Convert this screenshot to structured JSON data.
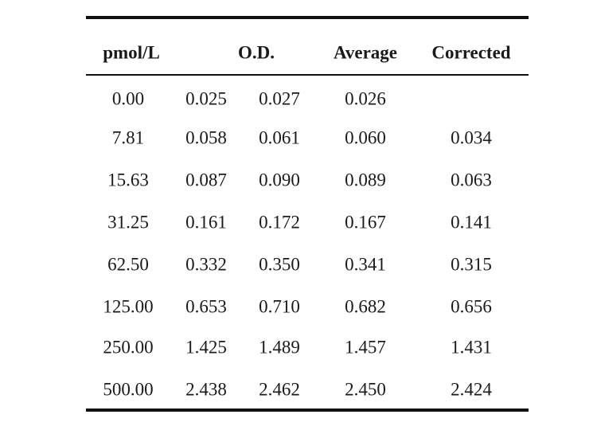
{
  "table": {
    "headers": {
      "concentration": "pmol/L",
      "od": "O.D.",
      "average": "Average",
      "corrected": "Corrected"
    },
    "rows": [
      {
        "conc": "0.00",
        "od1": "0.025",
        "od2": "0.027",
        "avg": "0.026",
        "corr": ""
      },
      {
        "conc": "7.81",
        "od1": "0.058",
        "od2": "0.061",
        "avg": "0.060",
        "corr": "0.034"
      },
      {
        "conc": "15.63",
        "od1": "0.087",
        "od2": "0.090",
        "avg": "0.089",
        "corr": "0.063"
      },
      {
        "conc": "31.25",
        "od1": "0.161",
        "od2": "0.172",
        "avg": "0.167",
        "corr": "0.141"
      },
      {
        "conc": "62.50",
        "od1": "0.332",
        "od2": "0.350",
        "avg": "0.341",
        "corr": "0.315"
      },
      {
        "conc": "125.00",
        "od1": "0.653",
        "od2": "0.710",
        "avg": "0.682",
        "corr": "0.656"
      },
      {
        "conc": "250.00",
        "od1": "1.425",
        "od2": "1.489",
        "avg": "1.457",
        "corr": "1.431"
      },
      {
        "conc": "500.00",
        "od1": "2.438",
        "od2": "2.462",
        "avg": "2.450",
        "corr": "2.424"
      }
    ]
  }
}
